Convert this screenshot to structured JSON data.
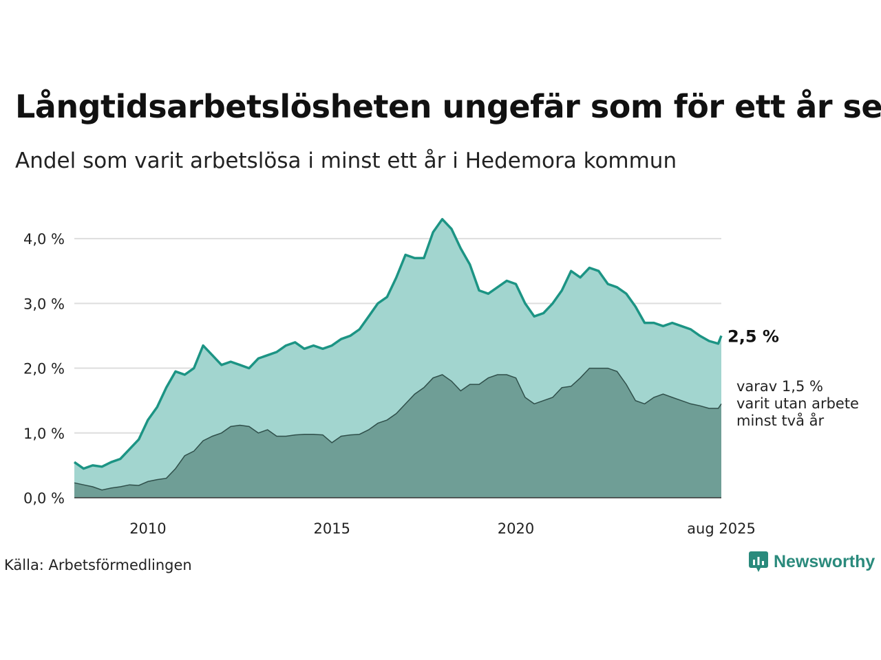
{
  "title": "Långtidsarbetslösheten ungefär som för ett år sen",
  "subtitle": "Andel som varit arbetslösa i minst ett år i Hedemora kommun",
  "source": "Källa: Arbetsförmedlingen",
  "logo": {
    "text": "Newsworthy",
    "icon": "newsworthy-chart-icon",
    "color": "#2a8a7c"
  },
  "chart_data": {
    "type": "area",
    "x_start": "2008-01",
    "x_end": "2025-08",
    "xticks": [
      {
        "x": "2010-01",
        "label": "2010"
      },
      {
        "x": "2015-01",
        "label": "2015"
      },
      {
        "x": "2020-01",
        "label": "2020"
      },
      {
        "x": "2025-08",
        "label": "aug 2025"
      }
    ],
    "ylim": [
      0,
      4.5
    ],
    "yticks": [
      {
        "value": 0,
        "label": "0,0 %"
      },
      {
        "value": 1,
        "label": "1,0 %"
      },
      {
        "value": 2,
        "label": "2,0 %"
      },
      {
        "value": 3,
        "label": "3,0 %"
      },
      {
        "value": 4,
        "label": "4,0 %"
      }
    ],
    "grid": true,
    "colors": {
      "total_line": "#1c9484",
      "total_fill": "#a2d5cf",
      "sub_fill": "#6f9e96",
      "sub_line": "#2f4f4a",
      "grid": "#dddddd"
    },
    "series": [
      {
        "key": "total",
        "end_label": "2,5 %",
        "points": [
          [
            "2008-01",
            0.55
          ],
          [
            "2008-04",
            0.45
          ],
          [
            "2008-07",
            0.5
          ],
          [
            "2008-10",
            0.48
          ],
          [
            "2009-01",
            0.55
          ],
          [
            "2009-04",
            0.6
          ],
          [
            "2009-07",
            0.75
          ],
          [
            "2009-10",
            0.9
          ],
          [
            "2010-01",
            1.2
          ],
          [
            "2010-04",
            1.4
          ],
          [
            "2010-07",
            1.7
          ],
          [
            "2010-10",
            1.95
          ],
          [
            "2011-01",
            1.9
          ],
          [
            "2011-04",
            2.0
          ],
          [
            "2011-07",
            2.35
          ],
          [
            "2011-10",
            2.2
          ],
          [
            "2012-01",
            2.05
          ],
          [
            "2012-04",
            2.1
          ],
          [
            "2012-07",
            2.05
          ],
          [
            "2012-10",
            2.0
          ],
          [
            "2013-01",
            2.15
          ],
          [
            "2013-04",
            2.2
          ],
          [
            "2013-07",
            2.25
          ],
          [
            "2013-10",
            2.35
          ],
          [
            "2014-01",
            2.4
          ],
          [
            "2014-04",
            2.3
          ],
          [
            "2014-07",
            2.35
          ],
          [
            "2014-10",
            2.3
          ],
          [
            "2015-01",
            2.35
          ],
          [
            "2015-04",
            2.45
          ],
          [
            "2015-07",
            2.5
          ],
          [
            "2015-10",
            2.6
          ],
          [
            "2016-01",
            2.8
          ],
          [
            "2016-04",
            3.0
          ],
          [
            "2016-07",
            3.1
          ],
          [
            "2016-10",
            3.4
          ],
          [
            "2017-01",
            3.75
          ],
          [
            "2017-04",
            3.7
          ],
          [
            "2017-07",
            3.7
          ],
          [
            "2017-10",
            4.1
          ],
          [
            "2018-01",
            4.3
          ],
          [
            "2018-04",
            4.15
          ],
          [
            "2018-07",
            3.85
          ],
          [
            "2018-10",
            3.6
          ],
          [
            "2019-01",
            3.2
          ],
          [
            "2019-04",
            3.15
          ],
          [
            "2019-07",
            3.25
          ],
          [
            "2019-10",
            3.35
          ],
          [
            "2020-01",
            3.3
          ],
          [
            "2020-04",
            3.0
          ],
          [
            "2020-07",
            2.8
          ],
          [
            "2020-10",
            2.85
          ],
          [
            "2021-01",
            3.0
          ],
          [
            "2021-04",
            3.2
          ],
          [
            "2021-07",
            3.5
          ],
          [
            "2021-10",
            3.4
          ],
          [
            "2022-01",
            3.55
          ],
          [
            "2022-04",
            3.5
          ],
          [
            "2022-07",
            3.3
          ],
          [
            "2022-10",
            3.25
          ],
          [
            "2023-01",
            3.15
          ],
          [
            "2023-04",
            2.95
          ],
          [
            "2023-07",
            2.7
          ],
          [
            "2023-10",
            2.7
          ],
          [
            "2024-01",
            2.65
          ],
          [
            "2024-04",
            2.7
          ],
          [
            "2024-07",
            2.65
          ],
          [
            "2024-10",
            2.6
          ],
          [
            "2025-01",
            2.5
          ],
          [
            "2025-04",
            2.42
          ],
          [
            "2025-07",
            2.38
          ],
          [
            "2025-08",
            2.5
          ]
        ]
      },
      {
        "key": "two_years",
        "end_label": [
          "varav 1,5 %",
          "varit utan arbete",
          "minst två år"
        ],
        "points": [
          [
            "2008-01",
            0.23
          ],
          [
            "2008-04",
            0.2
          ],
          [
            "2008-07",
            0.17
          ],
          [
            "2008-10",
            0.12
          ],
          [
            "2009-01",
            0.15
          ],
          [
            "2009-04",
            0.17
          ],
          [
            "2009-07",
            0.2
          ],
          [
            "2009-10",
            0.19
          ],
          [
            "2010-01",
            0.25
          ],
          [
            "2010-04",
            0.28
          ],
          [
            "2010-07",
            0.3
          ],
          [
            "2010-10",
            0.45
          ],
          [
            "2011-01",
            0.65
          ],
          [
            "2011-04",
            0.72
          ],
          [
            "2011-07",
            0.88
          ],
          [
            "2011-10",
            0.95
          ],
          [
            "2012-01",
            1.0
          ],
          [
            "2012-04",
            1.1
          ],
          [
            "2012-07",
            1.12
          ],
          [
            "2012-10",
            1.1
          ],
          [
            "2013-01",
            1.0
          ],
          [
            "2013-04",
            1.05
          ],
          [
            "2013-07",
            0.95
          ],
          [
            "2013-10",
            0.95
          ],
          [
            "2014-01",
            0.97
          ],
          [
            "2014-04",
            0.98
          ],
          [
            "2014-07",
            0.98
          ],
          [
            "2014-10",
            0.97
          ],
          [
            "2015-01",
            0.85
          ],
          [
            "2015-04",
            0.95
          ],
          [
            "2015-07",
            0.97
          ],
          [
            "2015-10",
            0.98
          ],
          [
            "2016-01",
            1.05
          ],
          [
            "2016-04",
            1.15
          ],
          [
            "2016-07",
            1.2
          ],
          [
            "2016-10",
            1.3
          ],
          [
            "2017-01",
            1.45
          ],
          [
            "2017-04",
            1.6
          ],
          [
            "2017-07",
            1.7
          ],
          [
            "2017-10",
            1.85
          ],
          [
            "2018-01",
            1.9
          ],
          [
            "2018-04",
            1.8
          ],
          [
            "2018-07",
            1.65
          ],
          [
            "2018-10",
            1.75
          ],
          [
            "2019-01",
            1.75
          ],
          [
            "2019-04",
            1.85
          ],
          [
            "2019-07",
            1.9
          ],
          [
            "2019-10",
            1.9
          ],
          [
            "2020-01",
            1.85
          ],
          [
            "2020-04",
            1.55
          ],
          [
            "2020-07",
            1.45
          ],
          [
            "2020-10",
            1.5
          ],
          [
            "2021-01",
            1.55
          ],
          [
            "2021-04",
            1.7
          ],
          [
            "2021-07",
            1.72
          ],
          [
            "2021-10",
            1.85
          ],
          [
            "2022-01",
            2.0
          ],
          [
            "2022-04",
            2.0
          ],
          [
            "2022-07",
            2.0
          ],
          [
            "2022-10",
            1.95
          ],
          [
            "2023-01",
            1.75
          ],
          [
            "2023-04",
            1.5
          ],
          [
            "2023-07",
            1.45
          ],
          [
            "2023-10",
            1.55
          ],
          [
            "2024-01",
            1.6
          ],
          [
            "2024-04",
            1.55
          ],
          [
            "2024-07",
            1.5
          ],
          [
            "2024-10",
            1.45
          ],
          [
            "2025-01",
            1.42
          ],
          [
            "2025-04",
            1.38
          ],
          [
            "2025-07",
            1.38
          ],
          [
            "2025-08",
            1.45
          ]
        ]
      }
    ]
  }
}
